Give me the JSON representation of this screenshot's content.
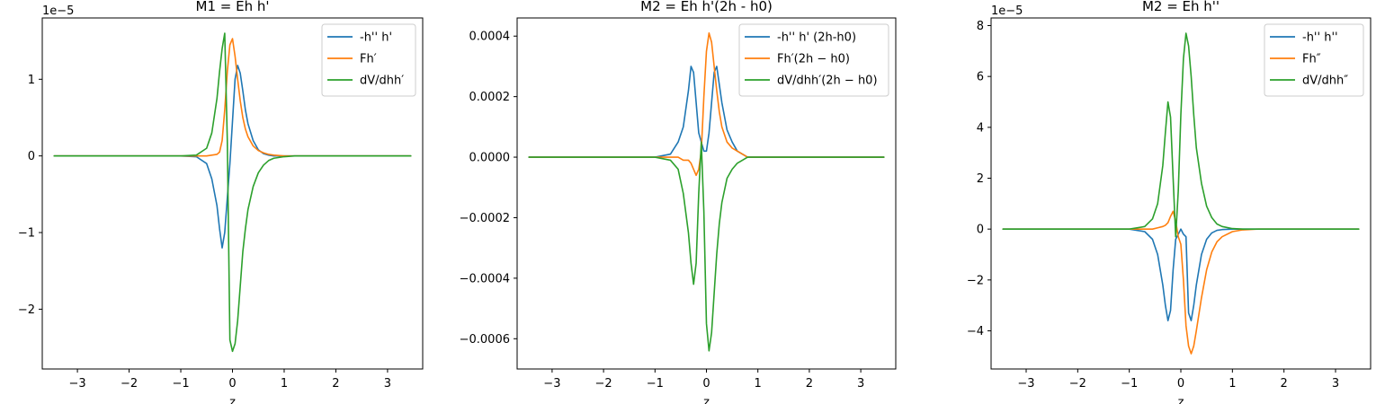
{
  "chart_data": [
    {
      "type": "line",
      "title": "M1 = Eh h'",
      "xlabel": "z",
      "ylabel": "",
      "offset_text": "1e−5",
      "xlim": [
        -3.68,
        3.68
      ],
      "ylim": [
        -2.78,
        1.8
      ],
      "xticks": [
        -3,
        -2,
        -1,
        0,
        1,
        2,
        3
      ],
      "xtick_labels": [
        "−3",
        "−2",
        "−1",
        "0",
        "1",
        "2",
        "3"
      ],
      "yticks": [
        -2,
        -1,
        0,
        1
      ],
      "ytick_labels": [
        "−2",
        "−1",
        "0",
        "1"
      ],
      "legend_position": "upper right",
      "x": [
        -3.45,
        -1.0,
        -0.7,
        -0.5,
        -0.4,
        -0.3,
        -0.25,
        -0.2,
        -0.15,
        -0.1,
        -0.05,
        0.0,
        0.05,
        0.1,
        0.15,
        0.2,
        0.25,
        0.3,
        0.4,
        0.5,
        0.6,
        0.7,
        0.8,
        1.0,
        1.2,
        1.5,
        2.0,
        3.45
      ],
      "series": [
        {
          "name": "-h'' h'",
          "color": "#1f77b4",
          "values": [
            0,
            0,
            -0.01,
            -0.1,
            -0.3,
            -0.65,
            -0.95,
            -1.2,
            -1.0,
            -0.55,
            -0.1,
            0.45,
            1.0,
            1.18,
            1.08,
            0.85,
            0.6,
            0.42,
            0.2,
            0.08,
            0.03,
            0.01,
            0,
            0,
            0,
            0,
            0,
            0
          ]
        },
        {
          "name": "Fh′",
          "color": "#ff7f0e",
          "values": [
            0,
            0,
            0,
            0,
            0.01,
            0.02,
            0.05,
            0.2,
            0.6,
            1.1,
            1.45,
            1.53,
            1.3,
            1.0,
            0.72,
            0.5,
            0.35,
            0.25,
            0.13,
            0.07,
            0.04,
            0.02,
            0.01,
            0,
            0,
            0,
            0,
            0
          ]
        },
        {
          "name": "dV/dhh′",
          "color": "#2ca02c",
          "values": [
            0,
            0,
            0.01,
            0.1,
            0.3,
            0.75,
            1.1,
            1.4,
            1.6,
            0.2,
            -2.4,
            -2.55,
            -2.45,
            -2.15,
            -1.7,
            -1.25,
            -0.95,
            -0.7,
            -0.4,
            -0.22,
            -0.12,
            -0.06,
            -0.03,
            -0.01,
            0,
            0,
            0,
            0
          ]
        }
      ]
    },
    {
      "type": "line",
      "title": "M2 = Eh h'(2h - h0)",
      "xlabel": "z",
      "ylabel": "",
      "offset_text": "",
      "xlim": [
        -3.68,
        3.68
      ],
      "ylim": [
        -0.0007,
        0.00046
      ],
      "xticks": [
        -3,
        -2,
        -1,
        0,
        1,
        2,
        3
      ],
      "xtick_labels": [
        "−3",
        "−2",
        "−1",
        "0",
        "1",
        "2",
        "3"
      ],
      "yticks": [
        -0.0006,
        -0.0004,
        -0.0002,
        0.0,
        0.0002,
        0.0004
      ],
      "ytick_labels": [
        "−0.0006",
        "−0.0004",
        "−0.0002",
        "0.0000",
        "0.0002",
        "0.0004"
      ],
      "legend_position": "upper right",
      "x": [
        -3.45,
        -1.0,
        -0.7,
        -0.55,
        -0.45,
        -0.35,
        -0.3,
        -0.25,
        -0.2,
        -0.15,
        -0.1,
        -0.05,
        0.0,
        0.05,
        0.1,
        0.15,
        0.2,
        0.25,
        0.3,
        0.4,
        0.5,
        0.6,
        0.7,
        0.8,
        0.9,
        1.0,
        1.2,
        1.5,
        2.0,
        3.45
      ],
      "series": [
        {
          "name": "-h'' h' (2h-h0)",
          "color": "#1f77b4",
          "values": [
            0,
            0,
            1e-05,
            5e-05,
            0.0001,
            0.00022,
            0.0003,
            0.00028,
            0.00018,
            8e-05,
            5e-05,
            2e-05,
            2e-05,
            8e-05,
            0.00018,
            0.00028,
            0.0003,
            0.00024,
            0.00018,
            9e-05,
            5e-05,
            2e-05,
            1e-05,
            0,
            0,
            0,
            0,
            0,
            0,
            0
          ]
        },
        {
          "name": "Fh′(2h − h0)",
          "color": "#ff7f0e",
          "values": [
            0,
            0,
            0,
            0,
            -1e-05,
            -1e-05,
            -2e-05,
            -4e-05,
            -6e-05,
            -4e-05,
            2e-05,
            0.0002,
            0.00035,
            0.00041,
            0.00038,
            0.0003,
            0.00022,
            0.00015,
            0.0001,
            5e-05,
            3e-05,
            2e-05,
            1e-05,
            0,
            0,
            0,
            0,
            0,
            0,
            0
          ]
        },
        {
          "name": "dV/dhh′(2h − h0)",
          "color": "#2ca02c",
          "values": [
            0,
            0,
            -1e-05,
            -4e-05,
            -0.00012,
            -0.00025,
            -0.00035,
            -0.00042,
            -0.00035,
            -0.00012,
            5e-05,
            -0.00018,
            -0.00055,
            -0.00064,
            -0.00058,
            -0.00045,
            -0.00032,
            -0.00022,
            -0.00015,
            -7e-05,
            -4e-05,
            -2e-05,
            -1e-05,
            0,
            0,
            0,
            0,
            0,
            0,
            0
          ]
        }
      ]
    },
    {
      "type": "line",
      "title": "M2 = Eh h''",
      "xlabel": "z",
      "ylabel": "",
      "offset_text": "1e−5",
      "xlim": [
        -3.68,
        3.68
      ],
      "ylim": [
        -5.5,
        8.3
      ],
      "xticks": [
        -3,
        -2,
        -1,
        0,
        1,
        2,
        3
      ],
      "xtick_labels": [
        "−3",
        "−2",
        "−1",
        "0",
        "1",
        "2",
        "3"
      ],
      "yticks": [
        -4,
        -2,
        0,
        2,
        4,
        6,
        8
      ],
      "ytick_labels": [
        "−4",
        "−2",
        "0",
        "2",
        "4",
        "6",
        "8"
      ],
      "legend_position": "upper right",
      "x": [
        -3.45,
        -1.0,
        -0.7,
        -0.55,
        -0.45,
        -0.35,
        -0.3,
        -0.25,
        -0.2,
        -0.15,
        -0.1,
        -0.05,
        0.0,
        0.05,
        0.1,
        0.15,
        0.2,
        0.25,
        0.3,
        0.4,
        0.5,
        0.6,
        0.7,
        0.8,
        1.0,
        1.2,
        1.5,
        2.0,
        3.45
      ],
      "series": [
        {
          "name": "-h'' h''",
          "color": "#1f77b4",
          "values": [
            0,
            0,
            -0.1,
            -0.4,
            -1.0,
            -2.2,
            -3.0,
            -3.6,
            -3.2,
            -1.6,
            -0.4,
            -0.2,
            0.0,
            -0.2,
            -0.3,
            -3.3,
            -3.6,
            -3.0,
            -2.2,
            -1.0,
            -0.4,
            -0.15,
            -0.05,
            -0.02,
            0,
            0,
            0,
            0,
            0
          ]
        },
        {
          "name": "Fh″",
          "color": "#ff7f0e",
          "values": [
            0,
            0,
            0,
            0,
            0.05,
            0.1,
            0.15,
            0.25,
            0.5,
            0.7,
            0.3,
            -0.3,
            -0.6,
            -2.0,
            -3.8,
            -4.6,
            -4.9,
            -4.6,
            -4.0,
            -2.7,
            -1.6,
            -0.9,
            -0.5,
            -0.3,
            -0.1,
            -0.03,
            0,
            0,
            0
          ]
        },
        {
          "name": "dV/dhh″",
          "color": "#2ca02c",
          "values": [
            0,
            0,
            0.1,
            0.4,
            1.0,
            2.5,
            3.8,
            5.0,
            4.4,
            2.0,
            -0.3,
            1.5,
            4.5,
            6.7,
            7.7,
            7.2,
            6.0,
            4.5,
            3.2,
            1.8,
            0.9,
            0.45,
            0.2,
            0.1,
            0.02,
            0,
            0,
            0,
            0
          ]
        }
      ]
    }
  ]
}
